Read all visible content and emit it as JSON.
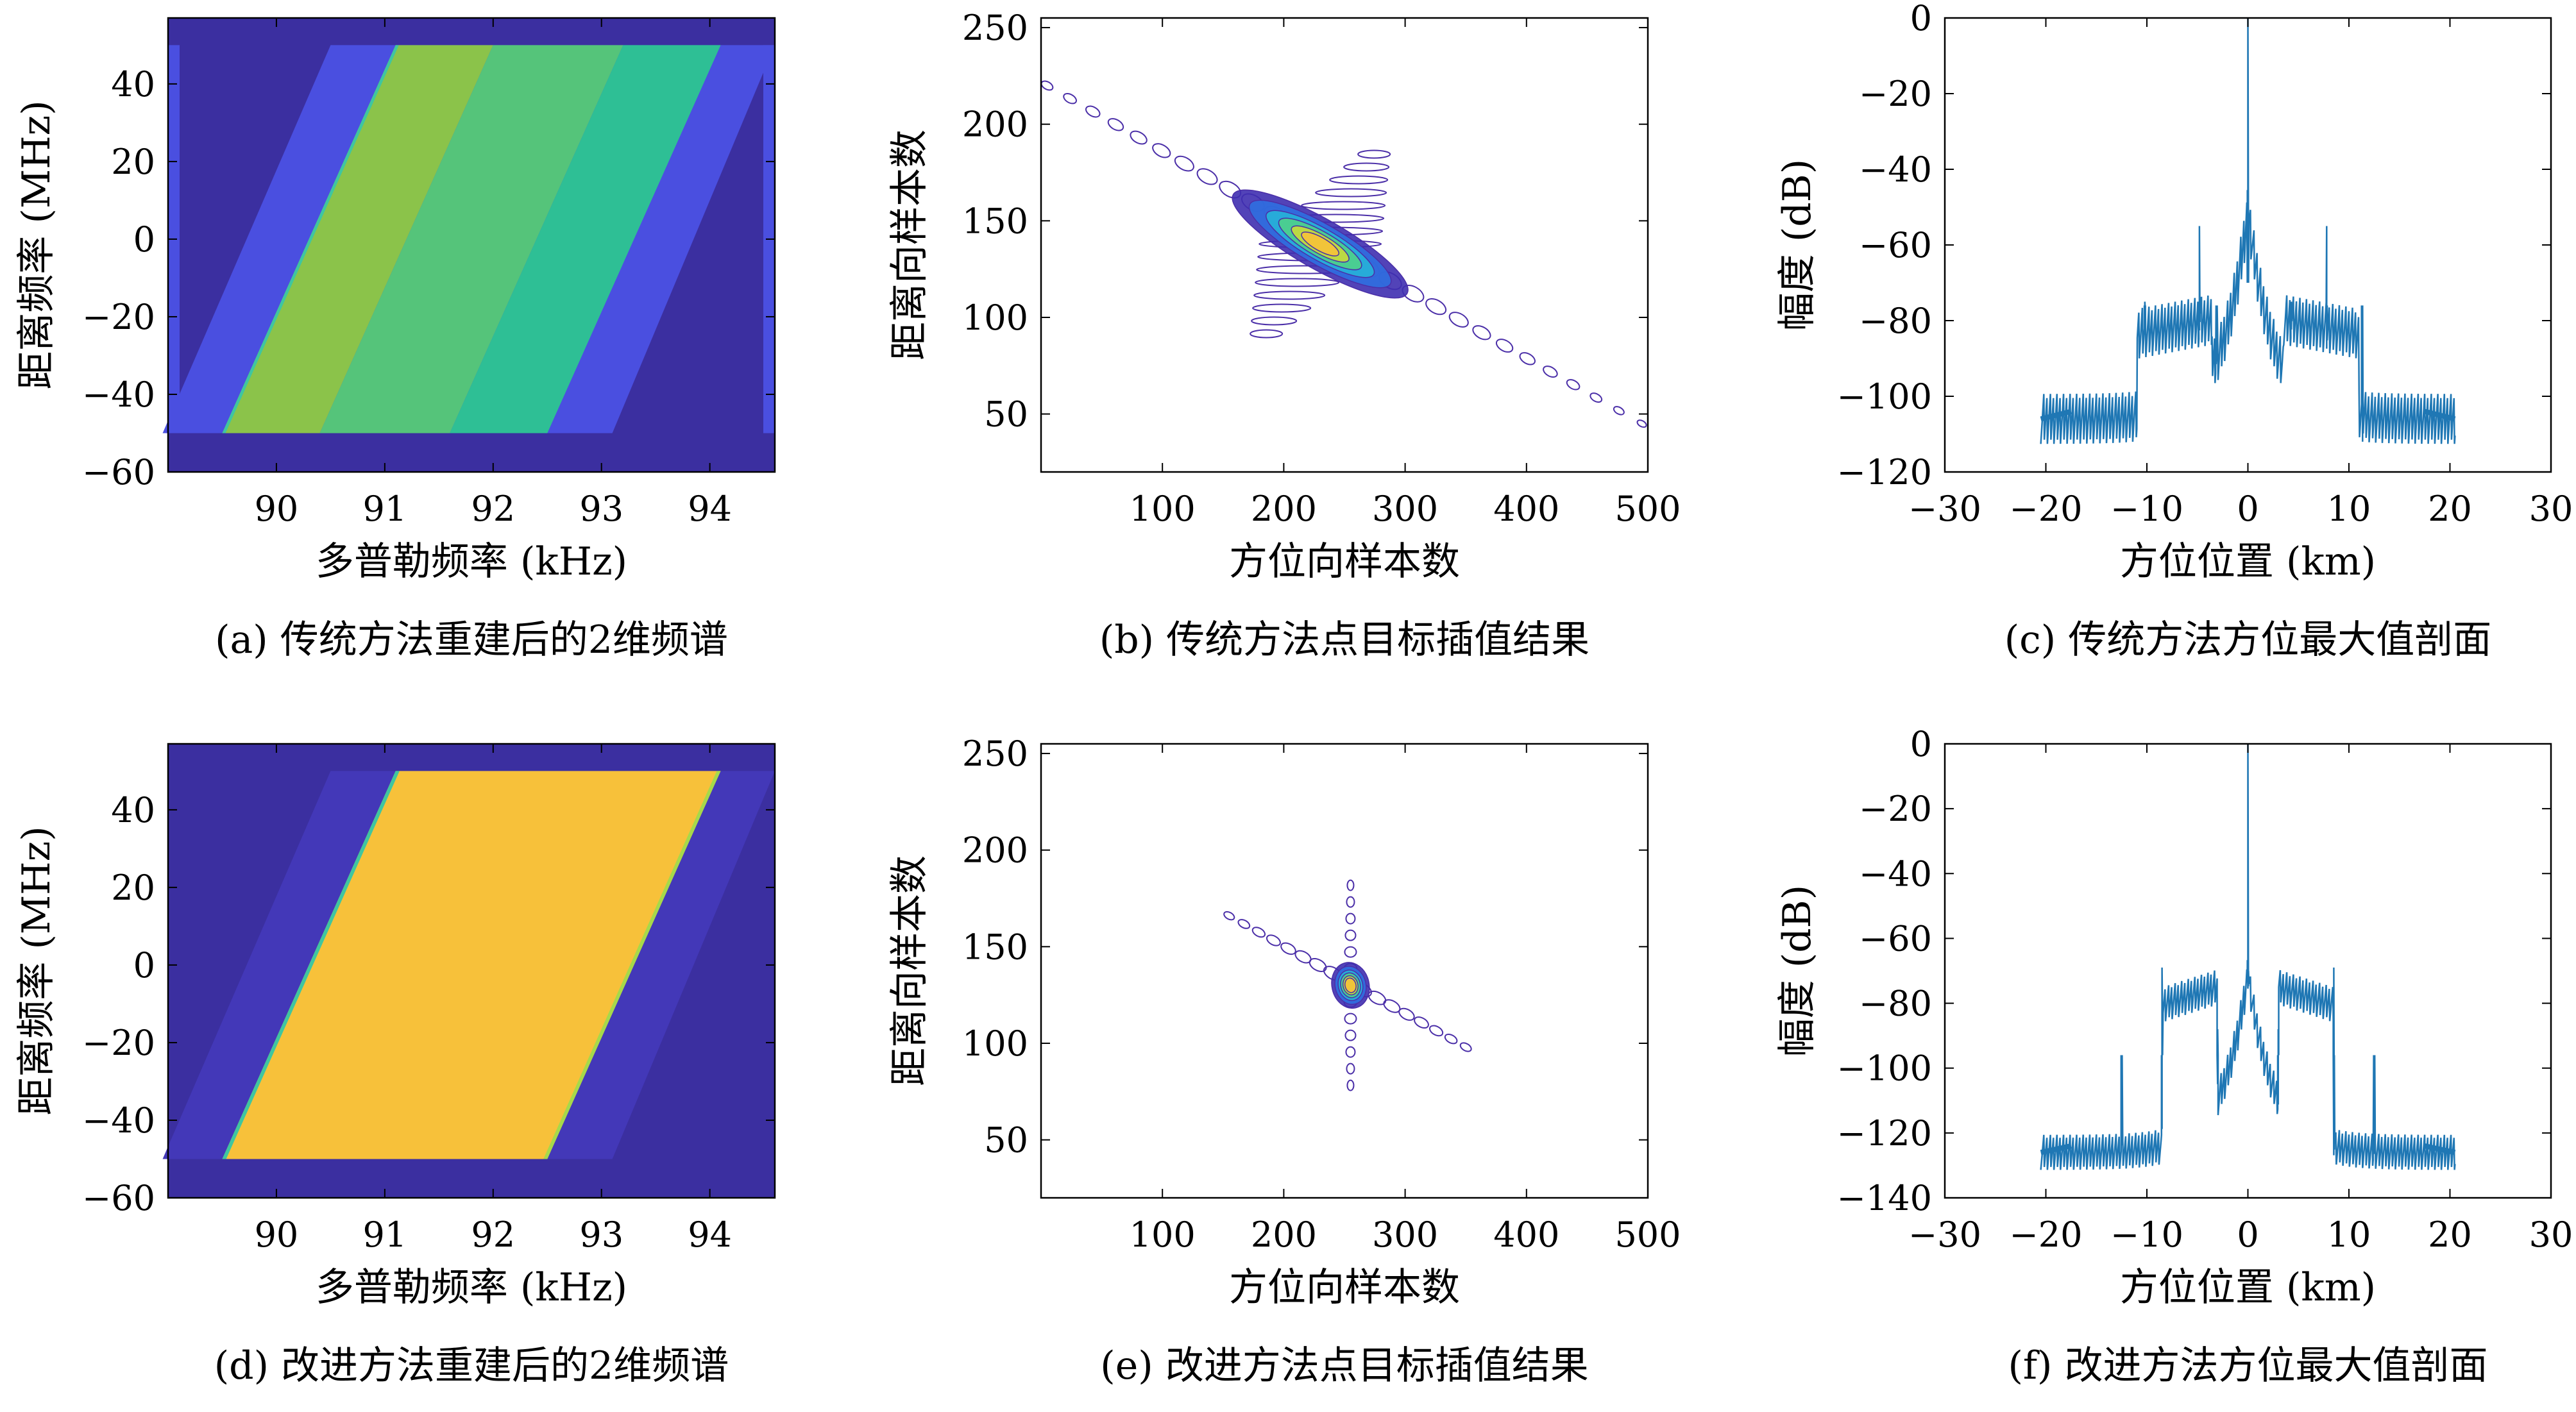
{
  "colors": {
    "dark_blue": "#3b2fa0",
    "mid_blue": "#4a4fe0",
    "yellow_green": "#8bc34a",
    "green": "#55c47a",
    "teal": "#2ebf95",
    "yellow_orange": "#f7c13a",
    "line_blue": "#1f77b4",
    "contour_purple": "#4b2fa8"
  },
  "panels": [
    {
      "id": "a",
      "kind": "spectrum",
      "caption": "(a) 传统方法重建后的2维频谱",
      "xlabel": "多普勒频率 (kHz)",
      "ylabel": "距离频率 (MHz)",
      "xticks": [
        "90",
        "91",
        "92",
        "93",
        "94"
      ],
      "yticks": [
        "40",
        "20",
        "0",
        "−20",
        "−40",
        "−60"
      ]
    },
    {
      "id": "b",
      "kind": "contour",
      "caption": "(b) 传统方法点目标插值结果",
      "xlabel": "方位向样本数",
      "ylabel": "距离向样本数",
      "xticks": [
        "100",
        "200",
        "300",
        "400",
        "500"
      ],
      "yticks": [
        "250",
        "200",
        "150",
        "100",
        "50"
      ]
    },
    {
      "id": "c",
      "kind": "profile",
      "caption": "(c) 传统方法方位最大值剖面",
      "xlabel": "方位位置 (km)",
      "ylabel": "幅度 (dB)",
      "xticks": [
        "−30",
        "−20",
        "−10",
        "0",
        "10",
        "20",
        "30"
      ],
      "yticks": [
        "0",
        "−20",
        "−40",
        "−60",
        "−80",
        "−100",
        "−120"
      ]
    },
    {
      "id": "d",
      "kind": "spectrum",
      "caption": "(d) 改进方法重建后的2维频谱",
      "xlabel": "多普勒频率 (kHz)",
      "ylabel": "距离频率 (MHz)",
      "xticks": [
        "90",
        "91",
        "92",
        "93",
        "94"
      ],
      "yticks": [
        "40",
        "20",
        "0",
        "−20",
        "−40",
        "−60"
      ]
    },
    {
      "id": "e",
      "kind": "contour",
      "caption": "(e) 改进方法点目标插值结果",
      "xlabel": "方位向样本数",
      "ylabel": "距离向样本数",
      "xticks": [
        "100",
        "200",
        "300",
        "400",
        "500"
      ],
      "yticks": [
        "250",
        "200",
        "150",
        "100",
        "50"
      ]
    },
    {
      "id": "f",
      "kind": "profile",
      "caption": "(f) 改进方法方位最大值剖面",
      "xlabel": "方位位置 (km)",
      "ylabel": "幅度 (dB)",
      "xticks": [
        "−30",
        "−20",
        "−10",
        "0",
        "10",
        "20",
        "30"
      ],
      "yticks": [
        "0",
        "−20",
        "−40",
        "−60",
        "−80",
        "−100",
        "−120",
        "−140"
      ]
    }
  ],
  "chart_data": [
    {
      "type": "heatmap",
      "panel": "a",
      "xlim": [
        89.0,
        94.6
      ],
      "ylim": [
        -60,
        57
      ],
      "band_ylim": [
        -50,
        50
      ],
      "parallelogram_bottom_x": [
        89.5,
        92.5
      ],
      "parallelogram_top_x": [
        91.1,
        94.1
      ],
      "support_bottom_x": [
        88.95,
        93.1
      ],
      "support_top_x": [
        90.5,
        94.6
      ],
      "fill": "three stripes: yellow-green, green, teal"
    },
    {
      "type": "contour",
      "panel": "b",
      "xlim": [
        0,
        500
      ],
      "ylim": [
        20,
        255
      ],
      "center": [
        230,
        138
      ],
      "long_axis_from": [
        5,
        220
      ],
      "long_axis_to": [
        495,
        45
      ],
      "sidelobe_direction": "vertical"
    },
    {
      "type": "line",
      "panel": "c",
      "xlim": [
        -30,
        30
      ],
      "ylim": [
        -120,
        0
      ],
      "x_extent": [
        -20.5,
        20.5
      ],
      "peak": [
        0,
        0
      ],
      "spikes": [
        [
          -4.8,
          -55
        ],
        [
          -10.2,
          -75
        ],
        [
          -3.1,
          -88
        ],
        [
          4.3,
          -75
        ],
        [
          7.8,
          -55
        ],
        [
          11.3,
          -84
        ]
      ]
    },
    {
      "type": "heatmap",
      "panel": "d",
      "xlim": [
        89.0,
        94.6
      ],
      "ylim": [
        -60,
        57
      ],
      "band_ylim": [
        -50,
        50
      ],
      "parallelogram_bottom_x": [
        89.5,
        92.5
      ],
      "parallelogram_top_x": [
        91.1,
        94.1
      ],
      "support_bottom_x": [
        88.95,
        93.1
      ],
      "support_top_x": [
        90.5,
        94.6
      ],
      "fill": "uniform yellow-orange"
    },
    {
      "type": "contour",
      "panel": "e",
      "xlim": [
        0,
        500
      ],
      "ylim": [
        20,
        255
      ],
      "center": [
        255,
        130
      ],
      "long_axis_from": [
        155,
        166
      ],
      "long_axis_to": [
        350,
        98
      ],
      "sidelobe_direction": "vertical"
    },
    {
      "type": "line",
      "panel": "f",
      "xlim": [
        -30,
        30
      ],
      "ylim": [
        -140,
        0
      ],
      "x_extent": [
        -20.5,
        20.5
      ],
      "peak": [
        0,
        0
      ],
      "spikes": [
        [
          -12.5,
          -100
        ],
        [
          -8.5,
          -69
        ],
        [
          8.5,
          -69
        ],
        [
          12.5,
          -103
        ],
        [
          -3.0,
          -88
        ],
        [
          3.0,
          -88
        ]
      ]
    }
  ]
}
